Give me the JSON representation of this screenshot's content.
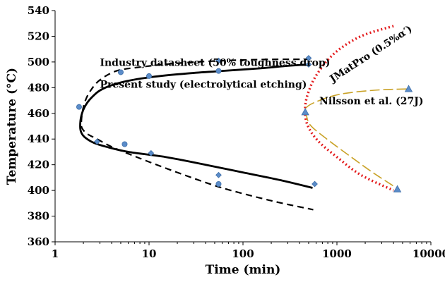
{
  "chart_data": {
    "type": "line",
    "xlabel": "Time (min)",
    "ylabel": "Temperature (°C)",
    "xscale": "log",
    "xlim": [
      1,
      10000
    ],
    "ylim": [
      360,
      540
    ],
    "xticks": [
      1,
      10,
      100,
      1000,
      10000
    ],
    "xtick_labels": [
      "1",
      "10",
      "100",
      "1000",
      "10000"
    ],
    "yticks": [
      360,
      380,
      400,
      420,
      440,
      460,
      480,
      500,
      520,
      540
    ],
    "ytick_labels": [
      "360",
      "380",
      "400",
      "420",
      "440",
      "460",
      "480",
      "500",
      "520",
      "540"
    ],
    "grid": false,
    "annotations": [
      {
        "text": "Industry datasheet (50% toughness drop)",
        "x": 3.0,
        "y": 497
      },
      {
        "text": "Present study (electrolytical etching)",
        "x": 3.0,
        "y": 480
      },
      {
        "text": "JMatPro (0.5%α′)",
        "x": 900,
        "y": 484
      },
      {
        "text": "Nilsson et al. (27J)",
        "x": 650,
        "y": 467
      }
    ],
    "series": [
      {
        "style": "solid",
        "color": "#000000",
        "x": [
          500,
          300,
          150,
          60,
          25,
          10,
          5,
          3.2,
          2.5,
          2.1,
          1.9,
          1.85,
          1.9,
          2.1,
          2.6,
          3.5,
          6,
          15,
          40,
          100,
          250,
          550
        ],
        "y": [
          498,
          497,
          495,
          493,
          491,
          488,
          484,
          479,
          473,
          466,
          458,
          450,
          445,
          441,
          437,
          434,
          430,
          426,
          420,
          414,
          408,
          402
        ]
      },
      {
        "style": "dashed",
        "color": "#000000",
        "x": [
          520,
          200,
          60,
          20,
          8,
          4.5,
          3,
          2.4,
          2.1,
          1.95,
          1.9,
          1.95,
          2.2,
          2.8,
          4,
          8,
          20,
          60,
          200,
          560
        ],
        "y": [
          502,
          502,
          501,
          499,
          496,
          493,
          486,
          478,
          470,
          461,
          452,
          448,
          444,
          440,
          434,
          425,
          414,
          402,
          392,
          385
        ]
      },
      {
        "style": "dotted",
        "color": "#e31a1c",
        "x": [
          4000,
          1800,
          950,
          620,
          500,
          460,
          480,
          620,
          1000,
          1800,
          4000
        ],
        "y": [
          528,
          520,
          507,
          491,
          477,
          465,
          452,
          439,
          426,
          412,
          400
        ]
      },
      {
        "style": "dashed",
        "color": "#c9a227",
        "x": [
          5500,
          2500,
          1100,
          650,
          480,
          470,
          520,
          750,
          1300,
          2400,
          4300
        ],
        "y": [
          479,
          478,
          475,
          470,
          465,
          460,
          451,
          441,
          428,
          414,
          402
        ]
      }
    ],
    "markers": [
      {
        "shape": "circle",
        "color": "#5b8cc9",
        "x": [
          5,
          10,
          55,
          1.8,
          5.5,
          55
        ],
        "y": [
          492,
          489,
          493,
          465,
          436,
          405
        ]
      },
      {
        "shape": "diamond",
        "color": "#5b8cc9",
        "x": [
          55,
          500,
          2.8,
          10.5,
          55,
          580,
          500
        ],
        "y": [
          501,
          498,
          438,
          429,
          412,
          405,
          503
        ]
      },
      {
        "shape": "triangle",
        "color": "#5b8cc9",
        "x": [
          460,
          5800,
          4400
        ],
        "y": [
          461,
          479,
          401
        ]
      }
    ]
  }
}
